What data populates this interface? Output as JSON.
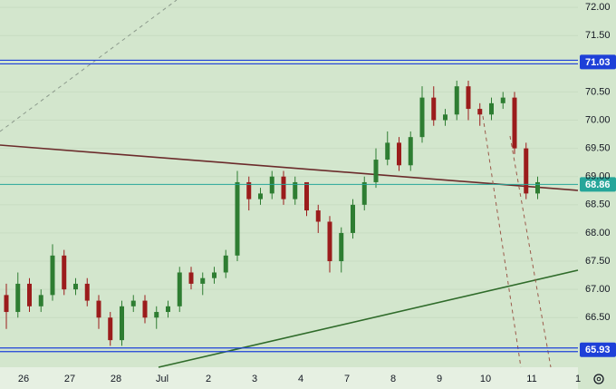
{
  "chart_data": {
    "type": "candlestick",
    "categories": [
      "26",
      "27",
      "28",
      "Jul",
      "2",
      "3",
      "4",
      "7",
      "8",
      "9",
      "10",
      "11",
      "1"
    ],
    "open": [
      66.9,
      66.6,
      67.1,
      66.7,
      66.9,
      67.6,
      67.0,
      67.1,
      66.8,
      66.5,
      66.1,
      66.7,
      66.8,
      66.5,
      66.6,
      66.7,
      67.3,
      67.1,
      67.2,
      67.3,
      67.6,
      68.9,
      68.6,
      68.7,
      69.0,
      68.6,
      68.9,
      68.4,
      68.2,
      67.5,
      68.0,
      68.5,
      68.9,
      69.3,
      69.6,
      69.2,
      69.7,
      70.4,
      70.0,
      70.1,
      70.6,
      70.2,
      70.1,
      70.3,
      70.4,
      69.5,
      68.7
    ],
    "high": [
      67.1,
      67.3,
      67.2,
      67.0,
      67.8,
      67.7,
      67.2,
      67.2,
      66.9,
      66.6,
      66.8,
      66.9,
      66.9,
      66.7,
      66.8,
      67.4,
      67.4,
      67.3,
      67.4,
      67.7,
      69.1,
      69.0,
      68.8,
      69.1,
      69.1,
      69.0,
      68.9,
      68.5,
      68.3,
      68.1,
      68.6,
      69.0,
      69.5,
      69.8,
      69.7,
      69.8,
      70.6,
      70.6,
      70.2,
      70.7,
      70.7,
      70.3,
      70.4,
      70.5,
      70.5,
      69.6,
      69.0
    ],
    "low": [
      66.3,
      66.5,
      66.6,
      66.6,
      66.8,
      66.9,
      66.9,
      66.7,
      66.3,
      66.0,
      66.0,
      66.6,
      66.4,
      66.3,
      66.5,
      66.6,
      67.0,
      66.9,
      67.1,
      67.2,
      67.5,
      68.4,
      68.5,
      68.6,
      68.5,
      68.5,
      68.3,
      68.0,
      67.3,
      67.3,
      67.9,
      68.4,
      68.8,
      69.2,
      69.1,
      69.1,
      69.6,
      69.9,
      69.9,
      70.0,
      70.0,
      69.9,
      70.0,
      70.2,
      69.4,
      68.6,
      68.6
    ],
    "close": [
      66.6,
      67.1,
      66.7,
      66.9,
      67.6,
      67.0,
      67.1,
      66.8,
      66.5,
      66.1,
      66.7,
      66.8,
      66.5,
      66.6,
      66.7,
      67.3,
      67.1,
      67.2,
      67.3,
      67.6,
      68.9,
      68.6,
      68.7,
      69.0,
      68.6,
      68.9,
      68.4,
      68.2,
      67.5,
      68.0,
      68.5,
      68.9,
      69.3,
      69.6,
      69.2,
      69.7,
      70.4,
      70.0,
      70.1,
      70.6,
      70.2,
      70.1,
      70.3,
      70.4,
      69.5,
      68.7,
      68.9
    ],
    "up_color": "#2e7d32",
    "down_color": "#9b1c1c",
    "ylim": [
      65.62,
      72.13
    ],
    "yticks": [
      {
        "value": 66.5,
        "label": "66.50"
      },
      {
        "value": 67,
        "label": "67.00"
      },
      {
        "value": 67.5,
        "label": "67.50"
      },
      {
        "value": 68,
        "label": "68.00"
      },
      {
        "value": 68.5,
        "label": "68.50"
      },
      {
        "value": 69,
        "label": "69.00"
      },
      {
        "value": 69.5,
        "label": "69.50"
      },
      {
        "value": 70,
        "label": "70.00"
      },
      {
        "value": 70.5,
        "label": "70.50"
      },
      {
        "value": 71.5,
        "label": "71.50"
      },
      {
        "value": 72,
        "label": "72.00"
      }
    ],
    "price_lines": [
      {
        "value": 71.03,
        "label": "71.03",
        "color": "#1e40d8",
        "double": true
      },
      {
        "value": 68.86,
        "label": "68.86",
        "color": "#26a69a",
        "double": false
      },
      {
        "value": 65.93,
        "label": "65.93",
        "color": "#1e40d8",
        "double": true
      }
    ]
  }
}
